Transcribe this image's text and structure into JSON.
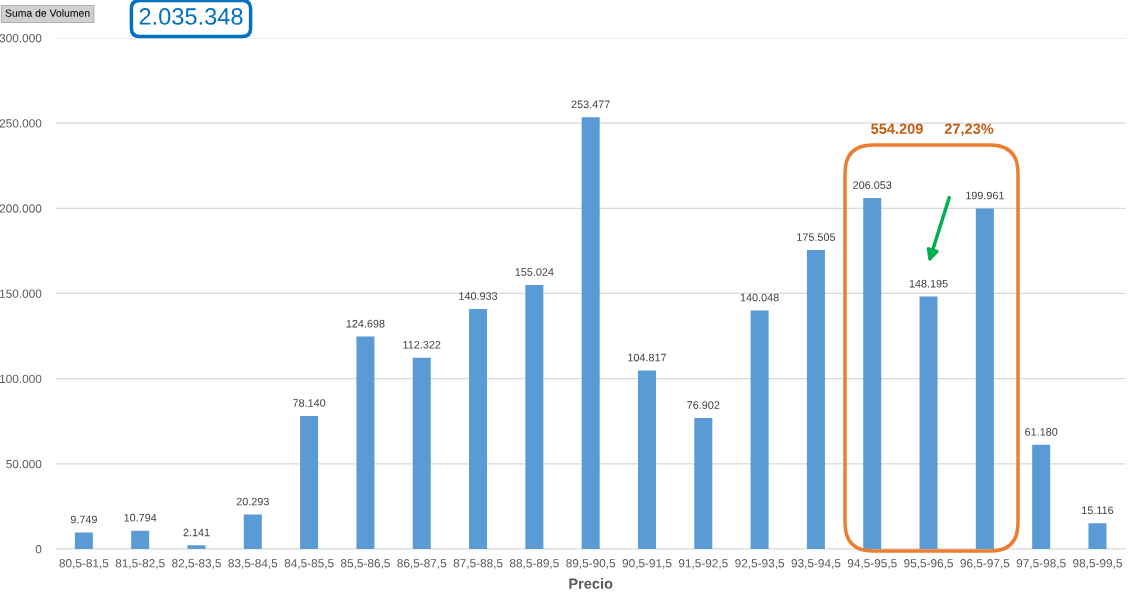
{
  "chart_data": {
    "type": "bar",
    "categories": [
      "80,5-81,5",
      "81,5-82,5",
      "82,5-83,5",
      "83,5-84,5",
      "84,5-85,5",
      "85,5-86,5",
      "86,5-87,5",
      "87,5-88,5",
      "88,5-89,5",
      "89,5-90,5",
      "90,5-91,5",
      "91,5-92,5",
      "92,5-93,5",
      "93,5-94,5",
      "94,5-95,5",
      "95,5-96,5",
      "96,5-97,5",
      "97,5-98,5",
      "98,5-99,5"
    ],
    "values": [
      9749,
      10794,
      2141,
      20293,
      78140,
      124698,
      112322,
      140933,
      155024,
      253477,
      104817,
      76902,
      140048,
      175505,
      206053,
      148195,
      199961,
      61180,
      15116
    ],
    "value_labels": [
      "9.749",
      "10.794",
      "2.141",
      "20.293",
      "78.140",
      "124.698",
      "112.322",
      "140.933",
      "155.024",
      "253.477",
      "104.817",
      "76.902",
      "140.048",
      "175.505",
      "206.053",
      "148.195",
      "199.961",
      "61.180",
      "15.116"
    ],
    "color": "#5b9bd5",
    "xlabel": "Precio",
    "ylim": [
      0,
      300000
    ],
    "yticks": [
      0,
      {
        "value": 50000,
        "label": "50.000"
      },
      {
        "value": 100000,
        "label": "100.000"
      },
      {
        "value": 150000,
        "label": "150.000"
      },
      {
        "value": 200000,
        "label": "200.000"
      },
      {
        "value": 250000,
        "label": "250.000"
      },
      {
        "value": 300000,
        "label": "300.000"
      }
    ],
    "grid": "y",
    "annotations": [
      "Suma de Volumen",
      "2.035.348",
      "554.209",
      "27,23%"
    ]
  }
}
